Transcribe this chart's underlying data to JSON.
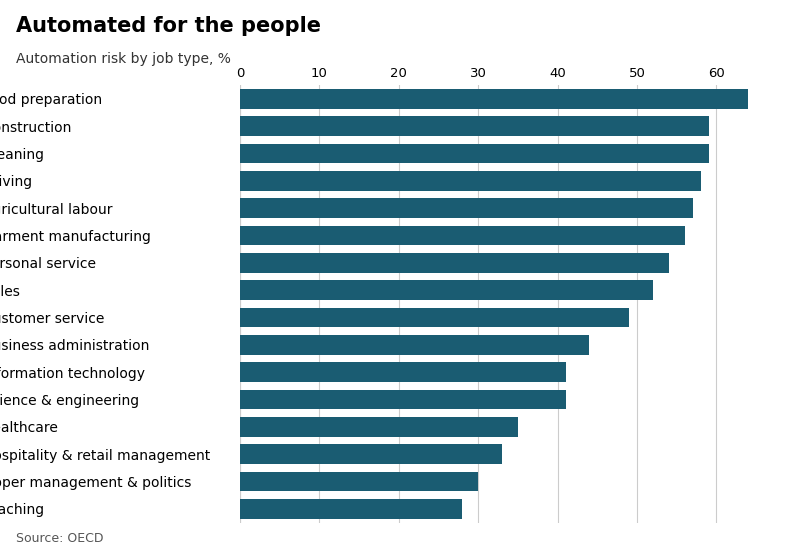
{
  "title": "Automated for the people",
  "subtitle": "Automation risk by job type, %",
  "source": "Source: OECD",
  "categories": [
    "Food preparation",
    "Construction",
    "Cleaning",
    "Driving",
    "Agricultural labour",
    "Garment manufacturing",
    "Personal service",
    "Sales",
    "Customer service",
    "Business administration",
    "Information technology",
    "Science & engineering",
    "Healthcare",
    "Hospitality & retail management",
    "Upper management & politics",
    "Teaching"
  ],
  "values": [
    64,
    59,
    59,
    58,
    57,
    56,
    54,
    52,
    49,
    44,
    41,
    41,
    35,
    33,
    30,
    28
  ],
  "bar_color": "#1a5c72",
  "background_color": "#ffffff",
  "xlim": [
    0,
    68
  ],
  "xticks": [
    0,
    10,
    20,
    30,
    40,
    50,
    60
  ],
  "grid_color": "#cccccc",
  "title_fontsize": 15,
  "subtitle_fontsize": 10,
  "label_fontsize": 10,
  "tick_fontsize": 9.5,
  "source_fontsize": 9,
  "bar_height": 0.72
}
